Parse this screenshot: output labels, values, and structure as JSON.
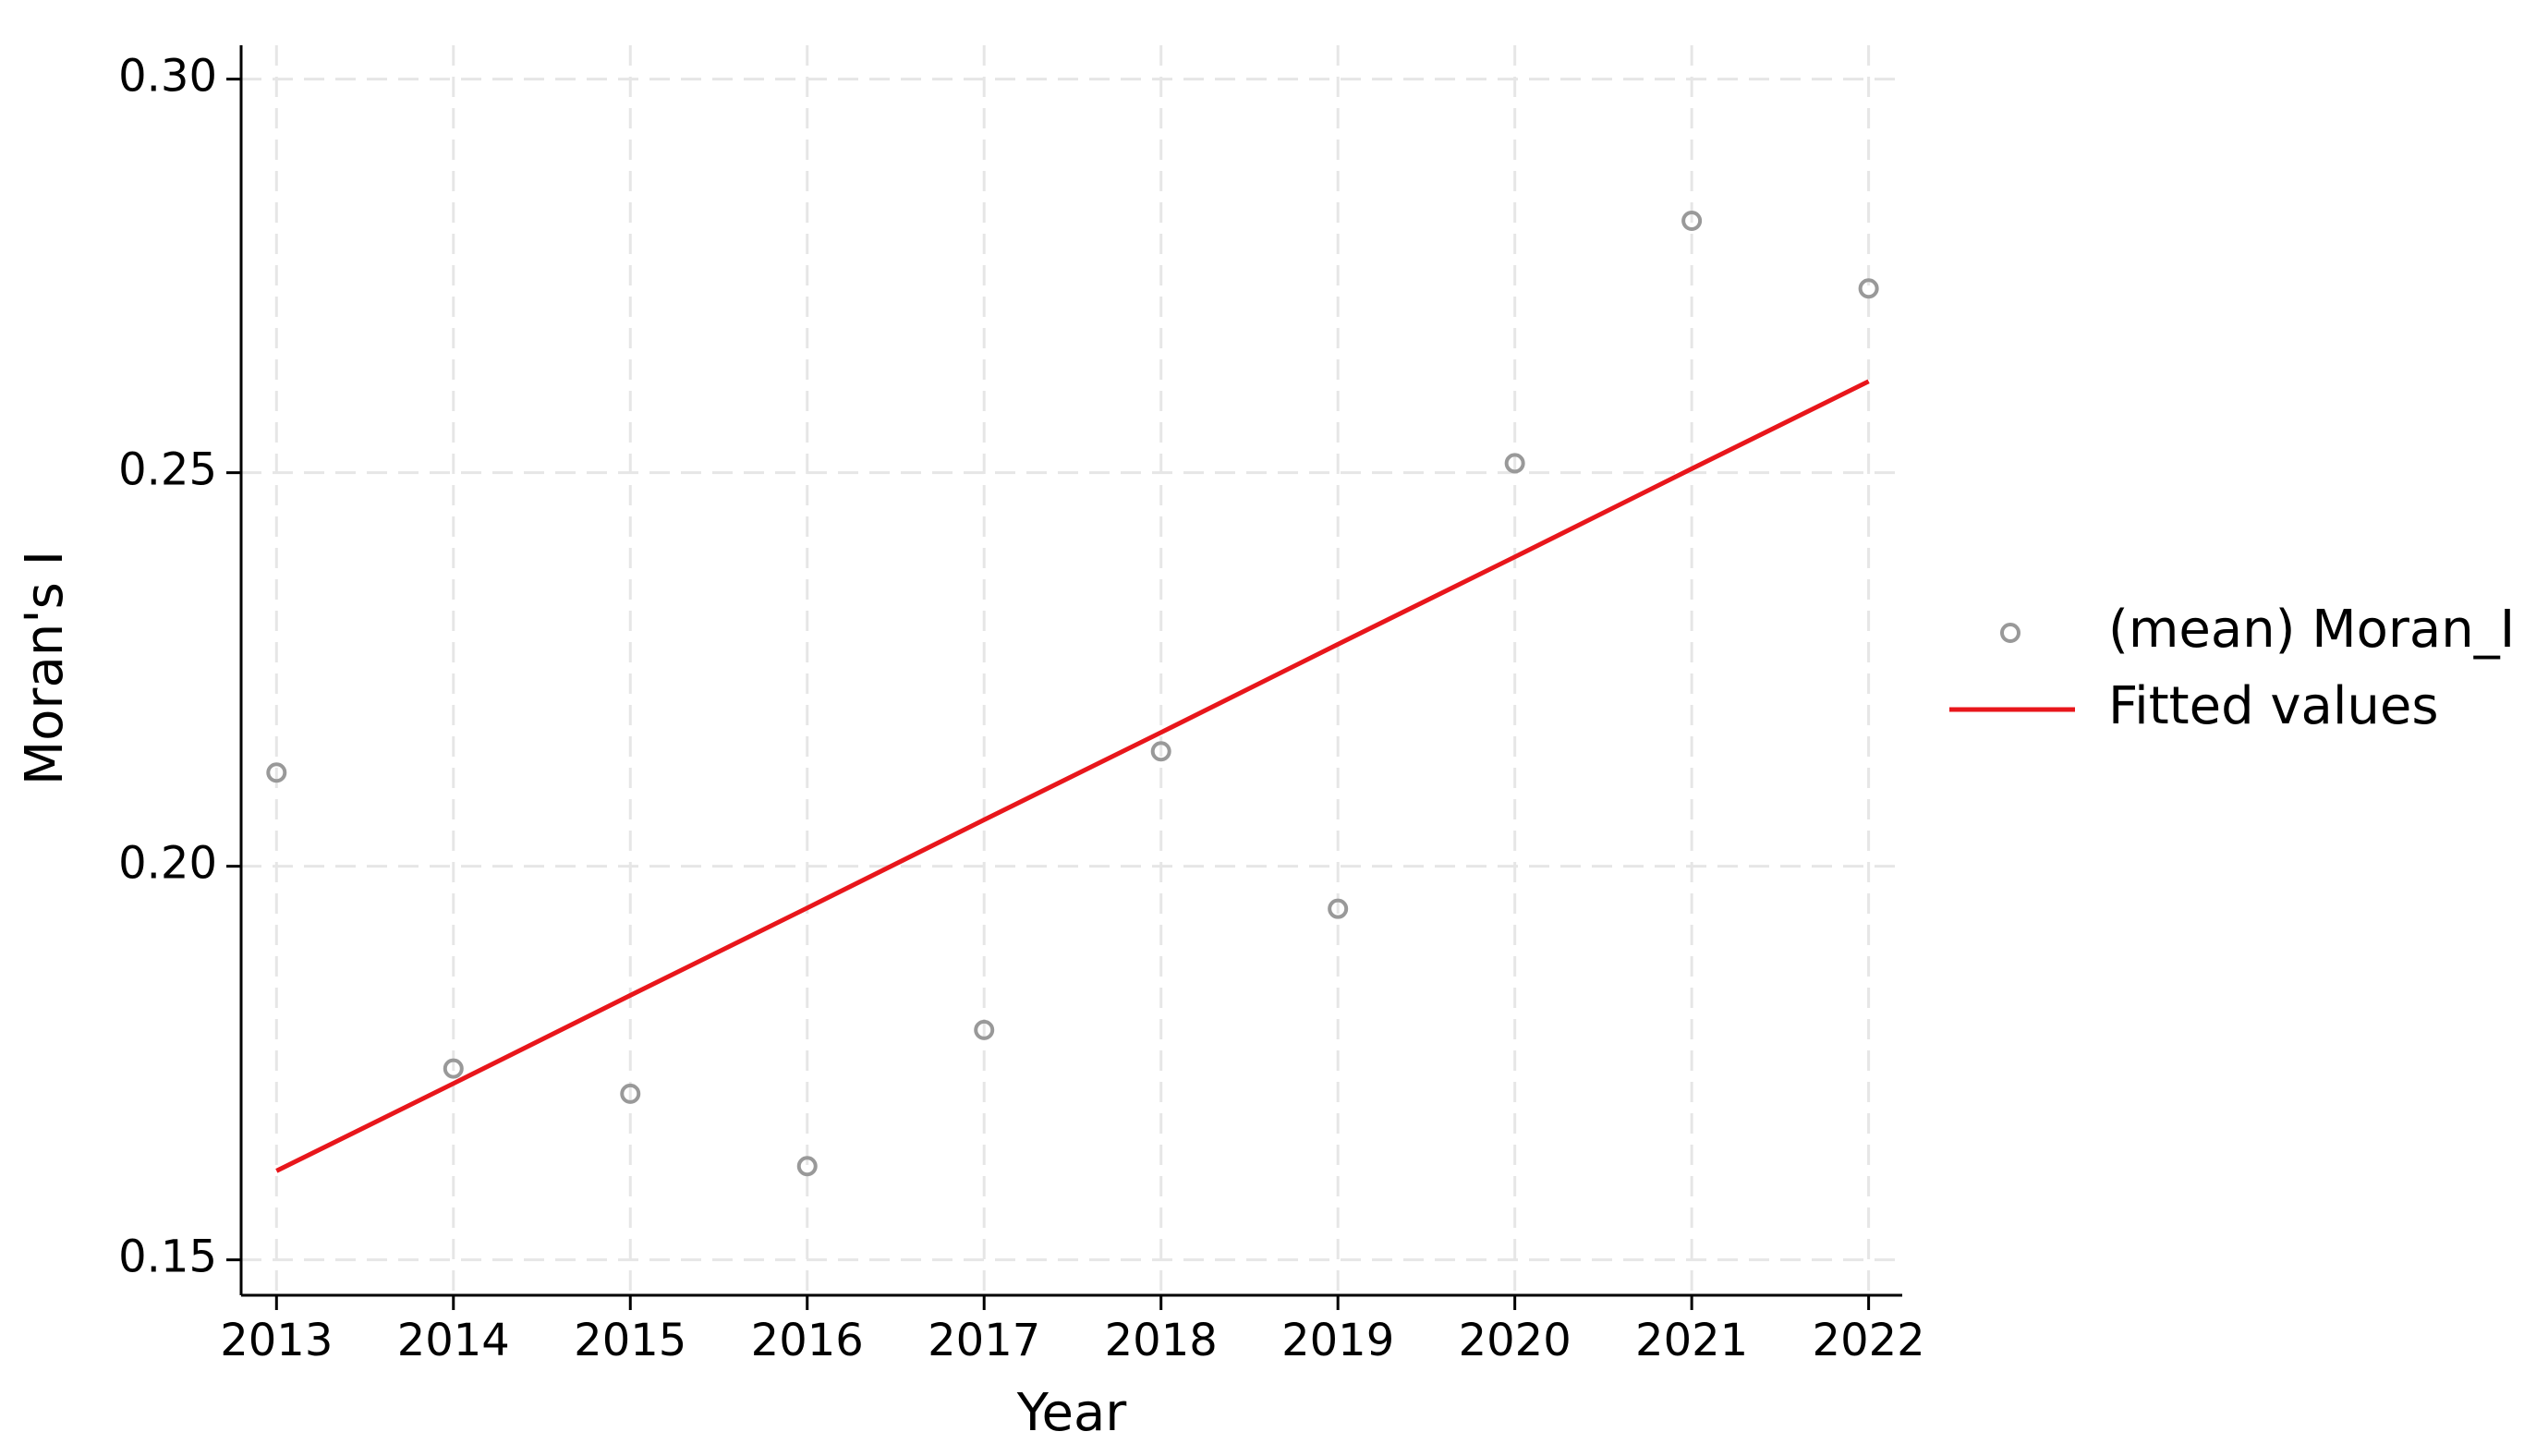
{
  "chart_data": {
    "type": "scatter",
    "x_label": "Year",
    "y_label": "Moran's I",
    "x": [
      2013,
      2014,
      2015,
      2016,
      2017,
      2018,
      2019,
      2020,
      2021,
      2022
    ],
    "series": [
      {
        "name": "(mean) Moran_I",
        "type": "marker",
        "color": "#999999",
        "values": [
          0.2119,
          0.1743,
          0.1711,
          0.1619,
          0.1792,
          0.2146,
          0.1946,
          0.2512,
          0.282,
          0.2734
        ]
      },
      {
        "name": "Fitted values",
        "type": "line",
        "color": "#e8161b",
        "values": [
          0.1613,
          0.1724,
          0.1836,
          0.1947,
          0.2059,
          0.217,
          0.2282,
          0.2393,
          0.2505,
          0.2616
        ]
      }
    ],
    "xlim": [
      2012.8,
      2022.19
    ],
    "xticks": [
      2013,
      2014,
      2015,
      2016,
      2017,
      2018,
      2019,
      2020,
      2021,
      2022
    ],
    "ylim": [
      0.1455,
      0.3043
    ],
    "yticks": [
      {
        "value": 0.15,
        "label": "0.15"
      },
      {
        "value": 0.2,
        "label": "0.20"
      },
      0.25,
      {
        "value": 0.3,
        "label": "0.30"
      }
    ],
    "grid": true,
    "legend": "right"
  }
}
